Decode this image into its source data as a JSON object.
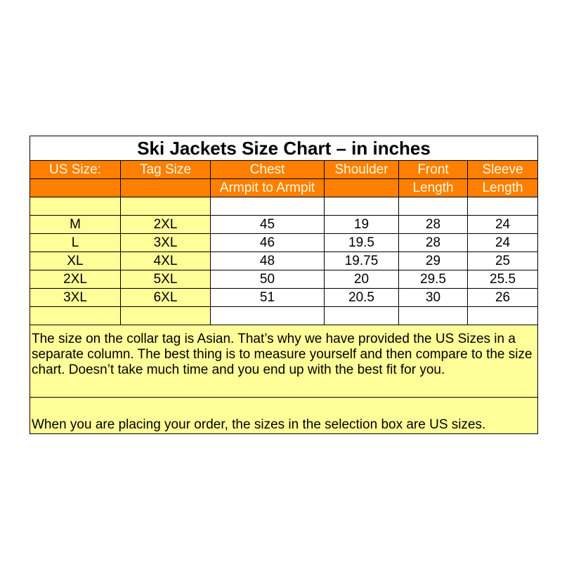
{
  "title": "Ski Jackets Size Chart – in inches",
  "headers": {
    "row1": [
      "US Size:",
      "Tag Size",
      "Chest",
      "Shoulder",
      "Front",
      "Sleeve"
    ],
    "row2": [
      "",
      "",
      "Armpit to Armpit",
      "",
      "Length",
      "Length"
    ]
  },
  "rows": [
    [
      "M",
      "2XL",
      "45",
      "19",
      "28",
      "24"
    ],
    [
      "L",
      "3XL",
      "46",
      "19.5",
      "28",
      "24"
    ],
    [
      "XL",
      "4XL",
      "48",
      "19.75",
      "29",
      "25"
    ],
    [
      "2XL",
      "5XL",
      "50",
      "20",
      "29.5",
      "25.5"
    ],
    [
      "3XL",
      "6XL",
      "51",
      "20.5",
      "30",
      "26"
    ]
  ],
  "note": "The size on the collar tag is Asian. That’s why we have provided the US Sizes in a separate column. The best thing is to measure yourself and then compare to the size chart. Doesn’t take much time and you end up with the best fit for you.",
  "order_note": "When you are placing your order, the sizes in the selection box are US sizes.",
  "colors": {
    "header": "#ff8000",
    "highlight": "#ffff99"
  }
}
